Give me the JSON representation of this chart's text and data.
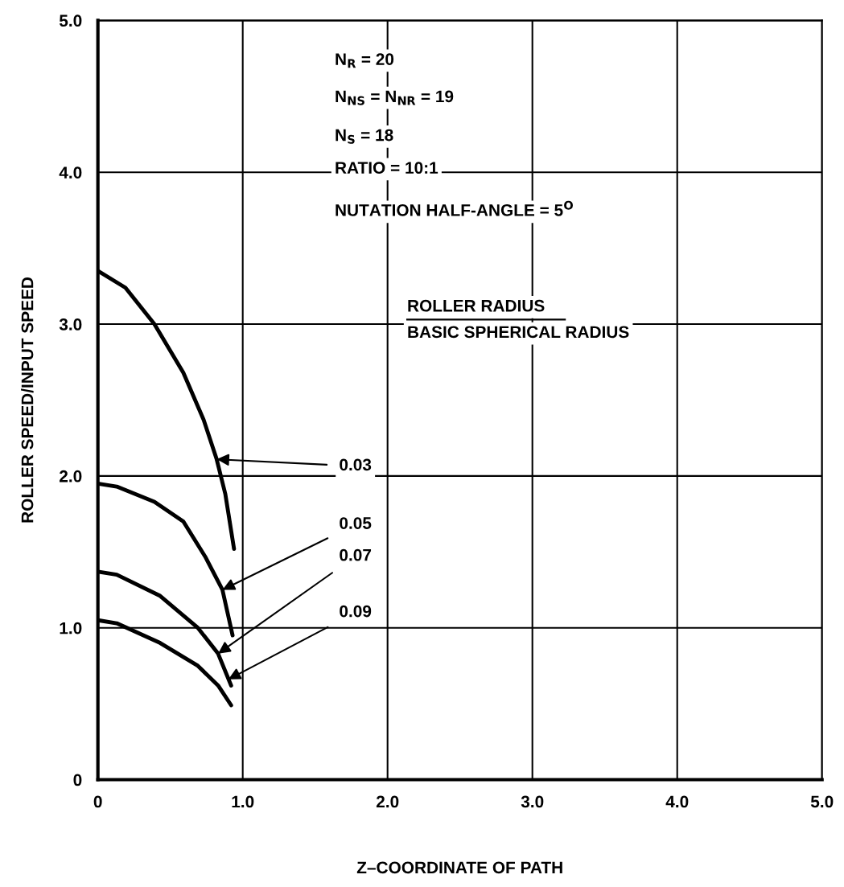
{
  "chart_data": {
    "type": "line",
    "xlabel": "Z–COORDINATE OF PATH",
    "ylabel": "ROLLER SPEED/INPUT SPEED",
    "xlim": [
      0,
      5
    ],
    "ylim": [
      0,
      5
    ],
    "xticks": [
      0,
      {
        "value": 1,
        "label": "1.0"
      },
      {
        "value": 2,
        "label": "2.0"
      },
      {
        "value": 3,
        "label": "3.0"
      },
      {
        "value": 4,
        "label": "4.0"
      },
      {
        "value": 5,
        "label": "5.0"
      }
    ],
    "yticks": [
      0,
      {
        "value": 1,
        "label": "1.0"
      },
      {
        "value": 2,
        "label": "2.0"
      },
      {
        "value": 3,
        "label": "3.0"
      },
      {
        "value": 4,
        "label": "4.0"
      },
      {
        "value": 5,
        "label": "5.0"
      }
    ],
    "grid": true,
    "marker": "none",
    "line_style": "solid",
    "series": [
      {
        "color": "#000000",
        "x": [
          0,
          0.19,
          0.39,
          0.59,
          0.73,
          0.82,
          0.88,
          0.94
        ],
        "values": [
          3.35,
          3.24,
          3.0,
          2.68,
          2.37,
          2.11,
          1.88,
          1.52
        ]
      },
      {
        "color": "#000000",
        "x": [
          0,
          0.13,
          0.39,
          0.59,
          0.74,
          0.86,
          0.93
        ],
        "values": [
          1.95,
          1.93,
          1.83,
          1.7,
          1.47,
          1.25,
          0.95
        ]
      },
      {
        "color": "#000000",
        "x": [
          0,
          0.13,
          0.43,
          0.69,
          0.83,
          0.92
        ],
        "values": [
          1.37,
          1.35,
          1.21,
          1.0,
          0.83,
          0.62
        ]
      },
      {
        "color": "#000000",
        "x": [
          0,
          0.13,
          0.43,
          0.69,
          0.83,
          0.92
        ],
        "values": [
          1.05,
          1.03,
          0.9,
          0.75,
          0.62,
          0.49
        ]
      }
    ],
    "annotations": [
      "N$_{R}$ = 20",
      "N$_{NS}$ = N$_{NR}$ = 19",
      "N$_{S}$ = 18",
      "RATIO = 10:1",
      "NUTATION HALF-ANGLE = 5$^{O}$",
      "ROLLER RADIUS",
      "BASIC SPHERICAL RADIUS",
      {
        "text": "0.03",
        "x": 0.82,
        "y": 2.11
      },
      {
        "text": "0.05",
        "x": 0.86,
        "y": 1.25
      },
      {
        "text": "0.07",
        "x": 0.83,
        "y": 0.83
      },
      {
        "text": "0.09",
        "x": 0.9,
        "y": 0.66
      }
    ]
  }
}
